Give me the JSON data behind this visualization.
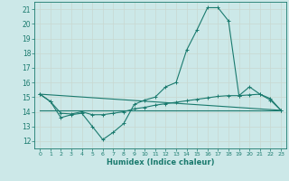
{
  "xlabel": "Humidex (Indice chaleur)",
  "background_color": "#cce8e8",
  "grid_color": "#b0d0d0",
  "line_color": "#1a7a6e",
  "xlim": [
    -0.5,
    23.5
  ],
  "ylim": [
    11.5,
    21.5
  ],
  "xticks": [
    0,
    1,
    2,
    3,
    4,
    5,
    6,
    7,
    8,
    9,
    10,
    11,
    12,
    13,
    14,
    15,
    16,
    17,
    18,
    19,
    20,
    21,
    22,
    23
  ],
  "yticks": [
    12,
    13,
    14,
    15,
    16,
    17,
    18,
    19,
    20,
    21
  ],
  "curve1_x": [
    0,
    1,
    2,
    3,
    4,
    5,
    6,
    7,
    8,
    9,
    10,
    11,
    12,
    13,
    14,
    15,
    16,
    17,
    18,
    19,
    20,
    21,
    22,
    23
  ],
  "curve1_y": [
    15.2,
    14.7,
    13.6,
    13.8,
    13.9,
    13.0,
    12.1,
    12.6,
    13.2,
    14.5,
    14.8,
    15.0,
    15.7,
    16.0,
    18.2,
    19.6,
    21.1,
    21.1,
    20.2,
    15.1,
    15.7,
    15.2,
    14.8,
    14.1
  ],
  "curve2_x": [
    0,
    1,
    2,
    3,
    4,
    5,
    6,
    7,
    8,
    9,
    10,
    11,
    12,
    13,
    14,
    15,
    16,
    17,
    18,
    19,
    20,
    21,
    22,
    23
  ],
  "curve2_y": [
    15.2,
    14.7,
    13.9,
    13.85,
    14.0,
    13.8,
    13.8,
    13.9,
    14.0,
    14.2,
    14.3,
    14.45,
    14.55,
    14.65,
    14.75,
    14.85,
    14.95,
    15.05,
    15.1,
    15.1,
    15.15,
    15.2,
    14.9,
    14.1
  ],
  "curve3_x": [
    0,
    23
  ],
  "curve3_y": [
    14.1,
    14.1
  ],
  "curve4_x": [
    0,
    23
  ],
  "curve4_y": [
    15.2,
    14.1
  ]
}
